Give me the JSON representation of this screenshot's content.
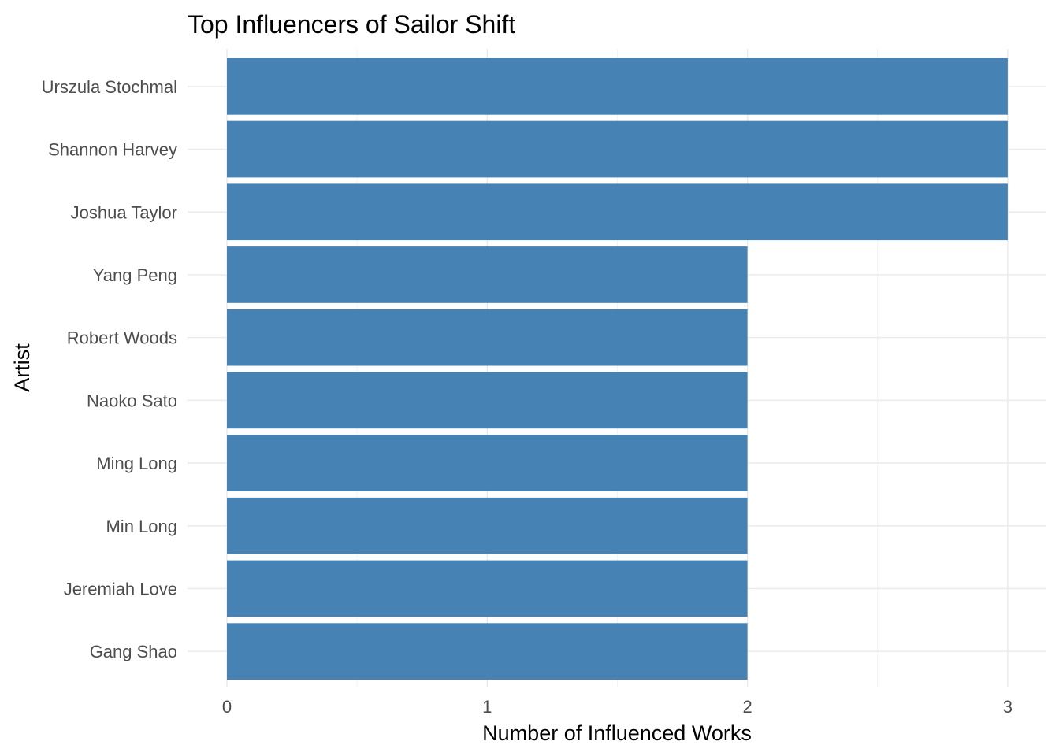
{
  "chart_data": {
    "type": "bar",
    "orientation": "horizontal",
    "title": "Top Influencers of Sailor Shift",
    "xlabel": "Number of Influenced Works",
    "ylabel": "Artist",
    "categories": [
      "Urszula Stochmal",
      "Shannon Harvey",
      "Joshua Taylor",
      "Yang Peng",
      "Robert Woods",
      "Naoko Sato",
      "Ming Long",
      "Min Long",
      "Jeremiah Love",
      "Gang Shao"
    ],
    "values": [
      3,
      3,
      3,
      2,
      2,
      2,
      2,
      2,
      2,
      2
    ],
    "xlim": [
      0,
      3
    ],
    "xticks": [
      "0",
      "1",
      "2",
      "3"
    ],
    "grid": true,
    "bar_color": "#4682B4"
  }
}
